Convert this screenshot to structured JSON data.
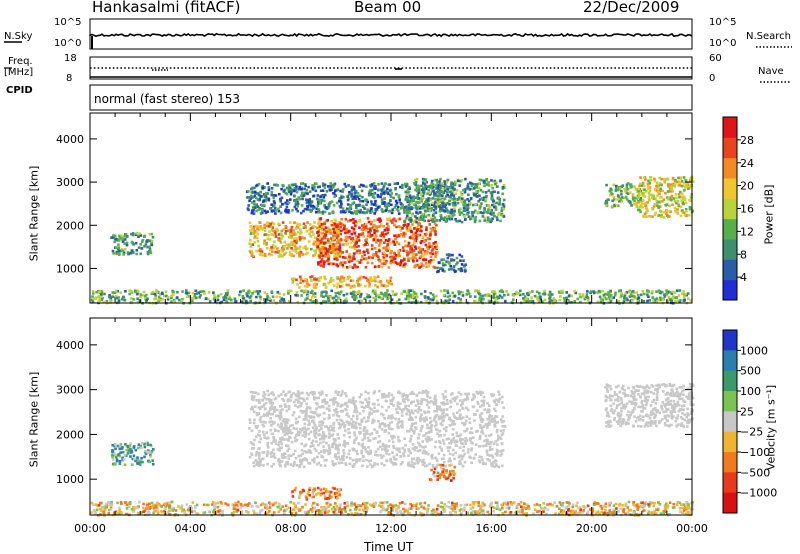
{
  "header": {
    "station": "Hankasalmi (fitACF)",
    "beam": "Beam 00",
    "date": "22/Dec/2009"
  },
  "params": {
    "nsky_label": "N.Sky",
    "nsky_top": "10^5",
    "nsky_bottom": "10^0",
    "nsearch_label": "N.Search",
    "nsearch_top": "10^5",
    "nsearch_bottom": "10^0",
    "freq_label": "Freq.",
    "freq_unit": "[MHz]",
    "freq_top": "18",
    "freq_bottom": "8",
    "nave_label": "Nave",
    "nave_top": "60",
    "nave_bottom": "0",
    "cpid_label": "CPID",
    "cpid_text": "normal (fast stereo) 153"
  },
  "colors": {
    "power": [
      "#1f2fd6",
      "#2a5da8",
      "#3e8f6e",
      "#55b04a",
      "#b8d43a",
      "#f2c52e",
      "#f48a23",
      "#e8451c",
      "#e01515"
    ],
    "velocity": [
      "#1f36c8",
      "#2a7fb0",
      "#3a9a6a",
      "#7cc452",
      "#c8c8c8",
      "#f0b530",
      "#f07a1c",
      "#e83a18",
      "#d81010"
    ],
    "ground_scatter": "#c8c8c8"
  },
  "chart_data": [
    {
      "type": "heatmap",
      "panel": "power",
      "ylabel": "Slant Range [km]",
      "yticks": [
        "1000",
        "2000",
        "3000",
        "4000"
      ],
      "ylim": [
        200,
        4600
      ],
      "xticks": [
        "00:00",
        "04:00",
        "08:00",
        "12:00",
        "16:00",
        "20:00",
        "00:00"
      ],
      "xlim_hours": [
        0,
        24
      ],
      "colorbar": {
        "label": "Power [dB]",
        "ticks": [
          "4",
          "8",
          "12",
          "16",
          "20",
          "24",
          "28"
        ],
        "range": [
          0,
          32
        ]
      },
      "regions": [
        {
          "t0": 0.0,
          "t1": 24.0,
          "r0": 220,
          "r1": 520,
          "level": 0.35
        },
        {
          "t0": 0.8,
          "t1": 2.5,
          "r0": 1350,
          "r1": 1850,
          "level": 0.3
        },
        {
          "t0": 6.2,
          "t1": 14.5,
          "r0": 2300,
          "r1": 3000,
          "level": 0.2
        },
        {
          "t0": 6.3,
          "t1": 10.0,
          "r0": 1300,
          "r1": 2100,
          "level": 0.65
        },
        {
          "t0": 9.0,
          "t1": 13.8,
          "r0": 1050,
          "r1": 2200,
          "level": 0.85
        },
        {
          "t0": 12.5,
          "t1": 16.5,
          "r0": 2100,
          "r1": 3100,
          "level": 0.3
        },
        {
          "t0": 8.0,
          "t1": 12.0,
          "r0": 580,
          "r1": 850,
          "level": 0.7
        },
        {
          "t0": 13.8,
          "t1": 15.0,
          "r0": 950,
          "r1": 1350,
          "level": 0.15
        },
        {
          "t0": 20.5,
          "t1": 22.0,
          "r0": 2450,
          "r1": 3000,
          "level": 0.4
        },
        {
          "t0": 21.8,
          "t1": 24.0,
          "r0": 2200,
          "r1": 3150,
          "level": 0.55
        }
      ]
    },
    {
      "type": "heatmap",
      "panel": "velocity",
      "ylabel": "Slant Range [km]",
      "yticks": [
        "1000",
        "2000",
        "3000",
        "4000"
      ],
      "ylim": [
        200,
        4600
      ],
      "xticks": [
        "00:00",
        "04:00",
        "08:00",
        "12:00",
        "16:00",
        "20:00",
        "00:00"
      ],
      "xlabel": "Time UT",
      "xlim_hours": [
        0,
        24
      ],
      "colorbar": {
        "label": "Velocity [m s⁻¹]",
        "ticks": [
          "1000",
          "500",
          "100",
          "25",
          "−25",
          "−100",
          "−500",
          "−1000"
        ]
      },
      "regions": [
        {
          "t0": 0.0,
          "t1": 24.0,
          "r0": 220,
          "r1": 520,
          "level": 0.6
        },
        {
          "t0": 0.8,
          "t1": 2.5,
          "r0": 1350,
          "r1": 1850,
          "level": 0.3
        },
        {
          "t0": 6.3,
          "t1": 16.5,
          "r0": 1300,
          "r1": 3000,
          "level": 0.5
        },
        {
          "t0": 8.0,
          "t1": 10.0,
          "r0": 580,
          "r1": 850,
          "level": 0.75
        },
        {
          "t0": 13.5,
          "t1": 14.5,
          "r0": 1000,
          "r1": 1350,
          "level": 0.72
        },
        {
          "t0": 20.5,
          "t1": 24.0,
          "r0": 2200,
          "r1": 3150,
          "level": 0.5
        }
      ]
    }
  ]
}
